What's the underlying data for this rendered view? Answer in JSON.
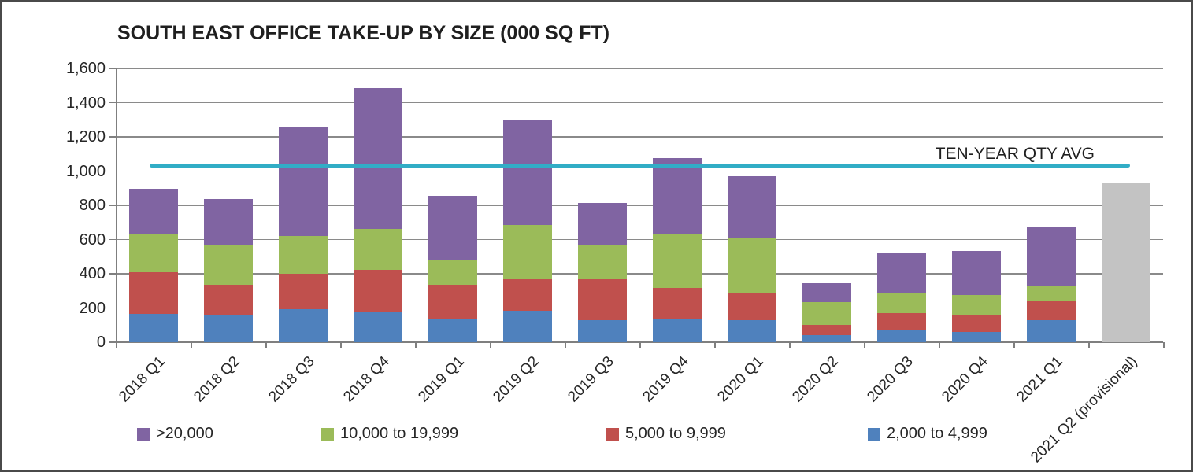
{
  "title": "SOUTH EAST OFFICE TAKE-UP BY SIZE (000 SQ FT)",
  "chart_data": {
    "type": "bar",
    "stacked": true,
    "title": "SOUTH EAST OFFICE TAKE-UP BY SIZE (000 SQ FT)",
    "xlabel": "",
    "ylabel": "",
    "ylim": [
      0,
      1600
    ],
    "ytick_step": 200,
    "ytick_labels": [
      "0",
      "200",
      "400",
      "600",
      "800",
      "1,000",
      "1,200",
      "1,400",
      "1,600"
    ],
    "grid": true,
    "legend_position": "bottom",
    "categories": [
      "2018 Q1",
      "2018 Q2",
      "2018 Q3",
      "2018 Q4",
      "2019 Q1",
      "2019 Q2",
      "2019 Q3",
      "2019 Q4",
      "2020 Q1",
      "2020 Q2",
      "2020 Q3",
      "2020 Q4",
      "2021 Q1",
      "2021 Q2 (provisional)"
    ],
    "series": [
      {
        "name": "2,000 to 4,999",
        "color": "#4F81BD",
        "values": [
          165,
          160,
          195,
          175,
          140,
          185,
          130,
          135,
          130,
          40,
          75,
          60,
          130,
          0
        ]
      },
      {
        "name": "5,000 to 9,999",
        "color": "#C0504D",
        "values": [
          245,
          175,
          205,
          250,
          195,
          185,
          240,
          180,
          160,
          60,
          95,
          100,
          115,
          0
        ]
      },
      {
        "name": "10,000 to 19,999",
        "color": "#9BBB59",
        "values": [
          220,
          230,
          220,
          235,
          145,
          315,
          200,
          315,
          320,
          135,
          120,
          115,
          85,
          0
        ]
      },
      {
        "name": ">20,000",
        "color": "#8064A2",
        "values": [
          265,
          270,
          635,
          825,
          375,
          615,
          245,
          445,
          360,
          110,
          230,
          260,
          345,
          0
        ]
      }
    ],
    "totals": [
      895,
      835,
      1255,
      1485,
      855,
      1300,
      815,
      1075,
      970,
      345,
      520,
      535,
      675,
      935
    ],
    "provisional": {
      "category": "2021 Q2 (provisional)",
      "value": 935,
      "color": "#C3C3C3"
    },
    "avg_line": {
      "label": "TEN-YEAR QTY AVG",
      "value": 1030,
      "color": "#31ADC6"
    },
    "legend": [
      {
        "label": ">20,000",
        "color": "#8064A2"
      },
      {
        "label": "10,000 to 19,999",
        "color": "#9BBB59"
      },
      {
        "label": "5,000 to 9,999",
        "color": "#C0504D"
      },
      {
        "label": "2,000 to 4,999",
        "color": "#4F81BD"
      }
    ]
  }
}
